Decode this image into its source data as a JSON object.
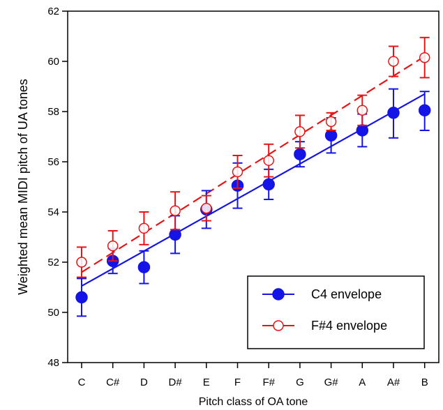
{
  "chart_data": {
    "type": "scatter",
    "xlabel": "Pitch class of OA tone",
    "ylabel": "Weighted mean MIDI pitch of UA tones",
    "categories": [
      "C",
      "C#",
      "D",
      "D#",
      "E",
      "F",
      "F#",
      "G",
      "G#",
      "A",
      "A#",
      "B"
    ],
    "ylim": [
      48,
      62
    ],
    "yticks": [
      48,
      50,
      52,
      54,
      56,
      58,
      60,
      62
    ],
    "grid": false,
    "legend_position": "bottom-right",
    "series": [
      {
        "name": "C4 envelope",
        "color": "#1414e6",
        "marker": "filled-circle",
        "line_style": "solid",
        "values": [
          50.6,
          52.05,
          51.8,
          53.1,
          54.1,
          55.05,
          55.1,
          56.3,
          57.05,
          57.25,
          57.95,
          58.05
        ],
        "error_low": [
          49.85,
          51.55,
          51.15,
          52.35,
          53.35,
          54.15,
          54.5,
          55.8,
          56.35,
          56.6,
          56.95,
          57.25
        ],
        "error_high": [
          51.35,
          52.55,
          52.45,
          53.85,
          54.85,
          55.95,
          55.7,
          56.8,
          57.75,
          57.9,
          58.9,
          58.8
        ],
        "fit": [
          51.05,
          58.7
        ]
      },
      {
        "name": "F#4 envelope",
        "color": "#e61414",
        "marker": "open-circle",
        "line_style": "dashed",
        "values": [
          52.0,
          52.65,
          53.35,
          54.05,
          54.15,
          55.6,
          56.05,
          57.2,
          57.6,
          58.05,
          60.0,
          60.15
        ],
        "error_low": [
          51.4,
          52.05,
          52.7,
          53.3,
          53.65,
          54.95,
          55.4,
          56.55,
          57.25,
          57.45,
          59.4,
          59.35
        ],
        "error_high": [
          52.6,
          53.25,
          54.0,
          54.8,
          54.65,
          56.25,
          56.7,
          57.85,
          57.95,
          58.65,
          60.6,
          60.95
        ],
        "fit": [
          51.6,
          60.2
        ]
      }
    ]
  }
}
